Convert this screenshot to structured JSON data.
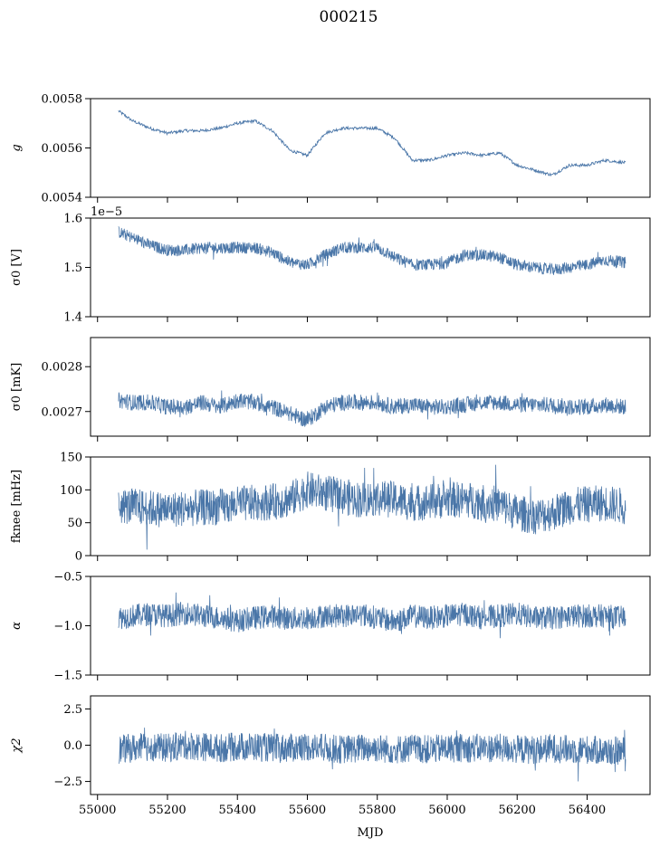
{
  "title": "000215",
  "series_color": "#4a76a8",
  "chart_data": [
    {
      "type": "line",
      "ylabel": "g",
      "ylim": [
        0.0054,
        0.0058
      ],
      "yticks": [
        0.0054,
        0.0056,
        0.0058
      ],
      "ytick_labels": [
        "0.0054",
        "0.0056",
        "0.0058"
      ],
      "offset_text": "",
      "x": [
        55060,
        55100,
        55150,
        55200,
        55250,
        55300,
        55350,
        55400,
        55450,
        55500,
        55550,
        55600,
        55650,
        55700,
        55750,
        55800,
        55850,
        55900,
        55950,
        56000,
        56050,
        56100,
        56150,
        56200,
        56250,
        56300,
        56350,
        56400,
        56450,
        56510
      ],
      "values": [
        0.00575,
        0.00571,
        0.00568,
        0.00566,
        0.00567,
        0.00567,
        0.00568,
        0.0057,
        0.00571,
        0.00567,
        0.00559,
        0.00557,
        0.00566,
        0.00568,
        0.00568,
        0.00568,
        0.00564,
        0.00555,
        0.00555,
        0.00557,
        0.00558,
        0.00557,
        0.00558,
        0.00553,
        0.00551,
        0.00549,
        0.00553,
        0.00553,
        0.00555,
        0.00554
      ],
      "band": 6e-06
    },
    {
      "type": "line",
      "ylabel": "σ0 [V]",
      "ylim": [
        1.4e-05,
        1.6e-05
      ],
      "yticks": [
        1.4e-05,
        1.5e-05,
        1.6e-05
      ],
      "ytick_labels": [
        "1.4",
        "1.5",
        "1.6"
      ],
      "offset_text": "1e−5",
      "x": [
        55060,
        55100,
        55150,
        55200,
        55250,
        55300,
        55350,
        55400,
        55450,
        55500,
        55550,
        55600,
        55650,
        55700,
        55750,
        55800,
        55850,
        55900,
        55950,
        56000,
        56050,
        56100,
        56150,
        56200,
        56250,
        56300,
        56350,
        56400,
        56450,
        56510
      ],
      "values": [
        1.572e-05,
        1.56e-05,
        1.545e-05,
        1.535e-05,
        1.535e-05,
        1.54e-05,
        1.54e-05,
        1.54e-05,
        1.54e-05,
        1.53e-05,
        1.51e-05,
        1.505e-05,
        1.525e-05,
        1.54e-05,
        1.54e-05,
        1.54e-05,
        1.52e-05,
        1.505e-05,
        1.505e-05,
        1.51e-05,
        1.525e-05,
        1.525e-05,
        1.52e-05,
        1.505e-05,
        1.5e-05,
        1.495e-05,
        1.5e-05,
        1.505e-05,
        1.515e-05,
        1.51e-05
      ],
      "band": 1.2e-07
    },
    {
      "type": "line",
      "ylabel": "σ0 [mK]",
      "ylim": [
        0.002645,
        0.002865
      ],
      "yticks": [
        0.0027,
        0.0028
      ],
      "ytick_labels": [
        "0.0027",
        "0.0028"
      ],
      "offset_text": "",
      "x": [
        55060,
        55100,
        55150,
        55200,
        55250,
        55300,
        55350,
        55400,
        55450,
        55500,
        55550,
        55600,
        55650,
        55700,
        55750,
        55800,
        55850,
        55900,
        55950,
        56000,
        56050,
        56100,
        56150,
        56200,
        56250,
        56300,
        56350,
        56400,
        56450,
        56510
      ],
      "values": [
        0.002725,
        0.00272,
        0.00272,
        0.00271,
        0.00271,
        0.00272,
        0.00271,
        0.002725,
        0.00272,
        0.00271,
        0.002695,
        0.00268,
        0.00271,
        0.00272,
        0.00272,
        0.00272,
        0.00271,
        0.002715,
        0.00271,
        0.00271,
        0.002715,
        0.00272,
        0.00272,
        0.002715,
        0.002715,
        0.002715,
        0.00271,
        0.00271,
        0.002715,
        0.00271
      ],
      "band": 1.8e-05
    },
    {
      "type": "line",
      "ylabel": "fknee [mHz]",
      "ylim": [
        0,
        150
      ],
      "yticks": [
        0,
        50,
        100,
        150
      ],
      "ytick_labels": [
        "0",
        "50",
        "100",
        "150"
      ],
      "offset_text": "",
      "x": [
        55060,
        55100,
        55150,
        55200,
        55250,
        55300,
        55350,
        55400,
        55450,
        55500,
        55550,
        55600,
        55650,
        55700,
        55750,
        55800,
        55850,
        55900,
        55950,
        56000,
        56050,
        56100,
        56150,
        56200,
        56250,
        56300,
        56350,
        56400,
        56450,
        56510
      ],
      "values": [
        75,
        75,
        72,
        70,
        72,
        73,
        74,
        78,
        80,
        82,
        85,
        100,
        95,
        90,
        85,
        88,
        85,
        80,
        82,
        85,
        85,
        82,
        78,
        65,
        60,
        65,
        75,
        78,
        80,
        75
      ],
      "band": 28
    },
    {
      "type": "line",
      "ylabel": "α",
      "ylim": [
        -1.5,
        -0.5
      ],
      "yticks": [
        -1.5,
        -1.0,
        -0.5
      ],
      "ytick_labels": [
        "−1.5",
        "−1.0",
        "−0.5"
      ],
      "offset_text": "",
      "x": [
        55060,
        55100,
        55150,
        55200,
        55250,
        55300,
        55350,
        55400,
        55450,
        55500,
        55550,
        55600,
        55650,
        55700,
        55750,
        55800,
        55850,
        55900,
        55950,
        56000,
        56050,
        56100,
        56150,
        56200,
        56250,
        56300,
        56350,
        56400,
        56450,
        56510
      ],
      "values": [
        -0.92,
        -0.9,
        -0.88,
        -0.9,
        -0.87,
        -0.9,
        -0.92,
        -0.95,
        -0.92,
        -0.9,
        -0.93,
        -0.92,
        -0.9,
        -0.9,
        -0.88,
        -0.92,
        -0.96,
        -0.9,
        -0.92,
        -0.9,
        -0.88,
        -0.92,
        -0.9,
        -0.88,
        -0.92,
        -0.92,
        -0.9,
        -0.9,
        -0.9,
        -0.92
      ],
      "band": 0.12
    },
    {
      "type": "line",
      "ylabel": "χ2",
      "ylim": [
        -3.4,
        3.4
      ],
      "yticks": [
        -2.5,
        0.0,
        2.5
      ],
      "ytick_labels": [
        "−2.5",
        "0.0",
        "2.5"
      ],
      "offset_text": "",
      "x": [
        55060,
        55100,
        55150,
        55200,
        55250,
        55300,
        55350,
        55400,
        55450,
        55500,
        55550,
        55600,
        55650,
        55700,
        55750,
        55800,
        55850,
        55900,
        55950,
        56000,
        56050,
        56100,
        56150,
        56200,
        56250,
        56300,
        56350,
        56400,
        56450,
        56510
      ],
      "values": [
        -0.3,
        -0.2,
        -0.1,
        -0.2,
        0.0,
        -0.1,
        -0.2,
        -0.1,
        -0.1,
        -0.2,
        -0.2,
        -0.1,
        -0.2,
        -0.3,
        -0.2,
        -0.2,
        -0.3,
        -0.2,
        -0.3,
        -0.2,
        -0.2,
        -0.2,
        -0.2,
        -0.3,
        -0.3,
        -0.2,
        -0.3,
        -0.3,
        -0.4,
        -0.4
      ],
      "band": 1.0
    }
  ],
  "x_axis": {
    "label": "MJD",
    "xlim": [
      54980,
      56580
    ],
    "ticks": [
      55000,
      55200,
      55400,
      55600,
      55800,
      56000,
      56200,
      56400
    ],
    "tick_labels": [
      "55000",
      "55200",
      "55400",
      "55600",
      "55800",
      "56000",
      "56200",
      "56400"
    ]
  }
}
